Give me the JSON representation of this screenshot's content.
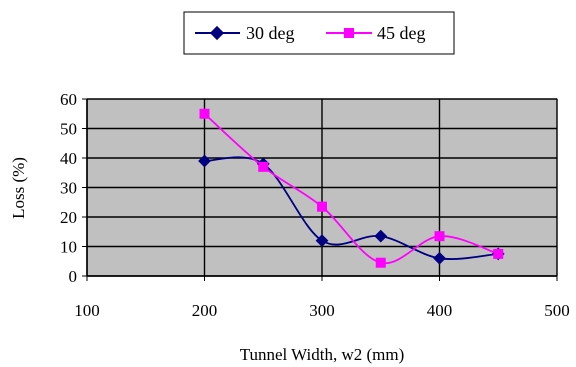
{
  "chart_data": {
    "type": "scatter",
    "xlabel": "Tunnel Width, w2 (mm)",
    "ylabel": "Loss (%)",
    "xlim": [
      100,
      500
    ],
    "ylim": [
      0,
      60
    ],
    "xticks": [
      100,
      200,
      300,
      400,
      500
    ],
    "yticks": [
      0,
      10,
      20,
      30,
      40,
      50,
      60
    ],
    "grid": true,
    "plot_background": "#c0c0c0",
    "legend_position": "top-center",
    "series": [
      {
        "name": "30 deg",
        "color": "#000080",
        "marker": "diamond",
        "smooth": true,
        "x": [
          200,
          250,
          300,
          350,
          400,
          450
        ],
        "y": [
          39,
          38,
          12,
          13.5,
          6,
          7.5
        ]
      },
      {
        "name": "45 deg",
        "color": "#ff00ff",
        "marker": "square",
        "smooth": true,
        "x": [
          200,
          250,
          300,
          350,
          400,
          450
        ],
        "y": [
          55,
          37,
          23.5,
          4.5,
          13.5,
          7.5
        ]
      }
    ]
  }
}
